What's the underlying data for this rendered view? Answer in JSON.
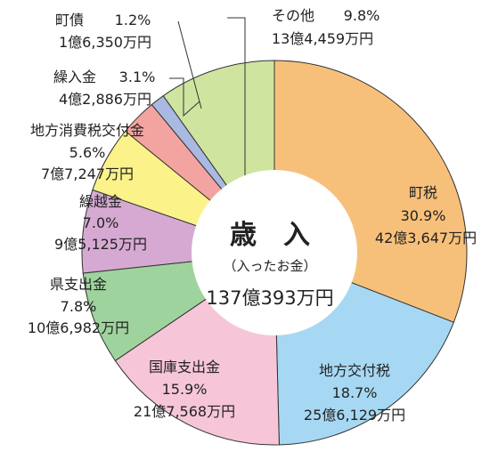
{
  "chart_data": {
    "type": "pie",
    "title": "歳　入",
    "subtitle": "（入ったお金）",
    "total": "137億393万円",
    "slices": [
      {
        "name": "町税",
        "percent": 30.9,
        "percent_label": "30.9%",
        "amount": "42億3,647万円",
        "color": "#f7c07a"
      },
      {
        "name": "地方交付税",
        "percent": 18.7,
        "percent_label": "18.7%",
        "amount": "25億6,129万円",
        "color": "#a7d8f3"
      },
      {
        "name": "国庫支出金",
        "percent": 15.9,
        "percent_label": "15.9%",
        "amount": "21億7,568万円",
        "color": "#f6c6d8"
      },
      {
        "name": "県支出金",
        "percent": 7.8,
        "percent_label": "7.8%",
        "amount": "10億6,982万円",
        "color": "#9fd39d"
      },
      {
        "name": "繰越金",
        "percent": 7.0,
        "percent_label": "7.0%",
        "amount": "9億5,125万円",
        "color": "#d6a9d3"
      },
      {
        "name": "地方消費税交付金",
        "percent": 5.6,
        "percent_label": "5.6%",
        "amount": "7億7,247万円",
        "color": "#fbf28a"
      },
      {
        "name": "繰入金",
        "percent": 3.1,
        "percent_label": "3.1%",
        "amount": "4億2,886万円",
        "color": "#f3a3a0"
      },
      {
        "name": "町債",
        "percent": 1.2,
        "percent_label": "1.2%",
        "amount": "1億6,350万円",
        "color": "#a9b9e2"
      },
      {
        "name": "その他",
        "percent": 9.8,
        "percent_label": "9.8%",
        "amount": "13億4,459万円",
        "color": "#cfe49f"
      }
    ]
  }
}
